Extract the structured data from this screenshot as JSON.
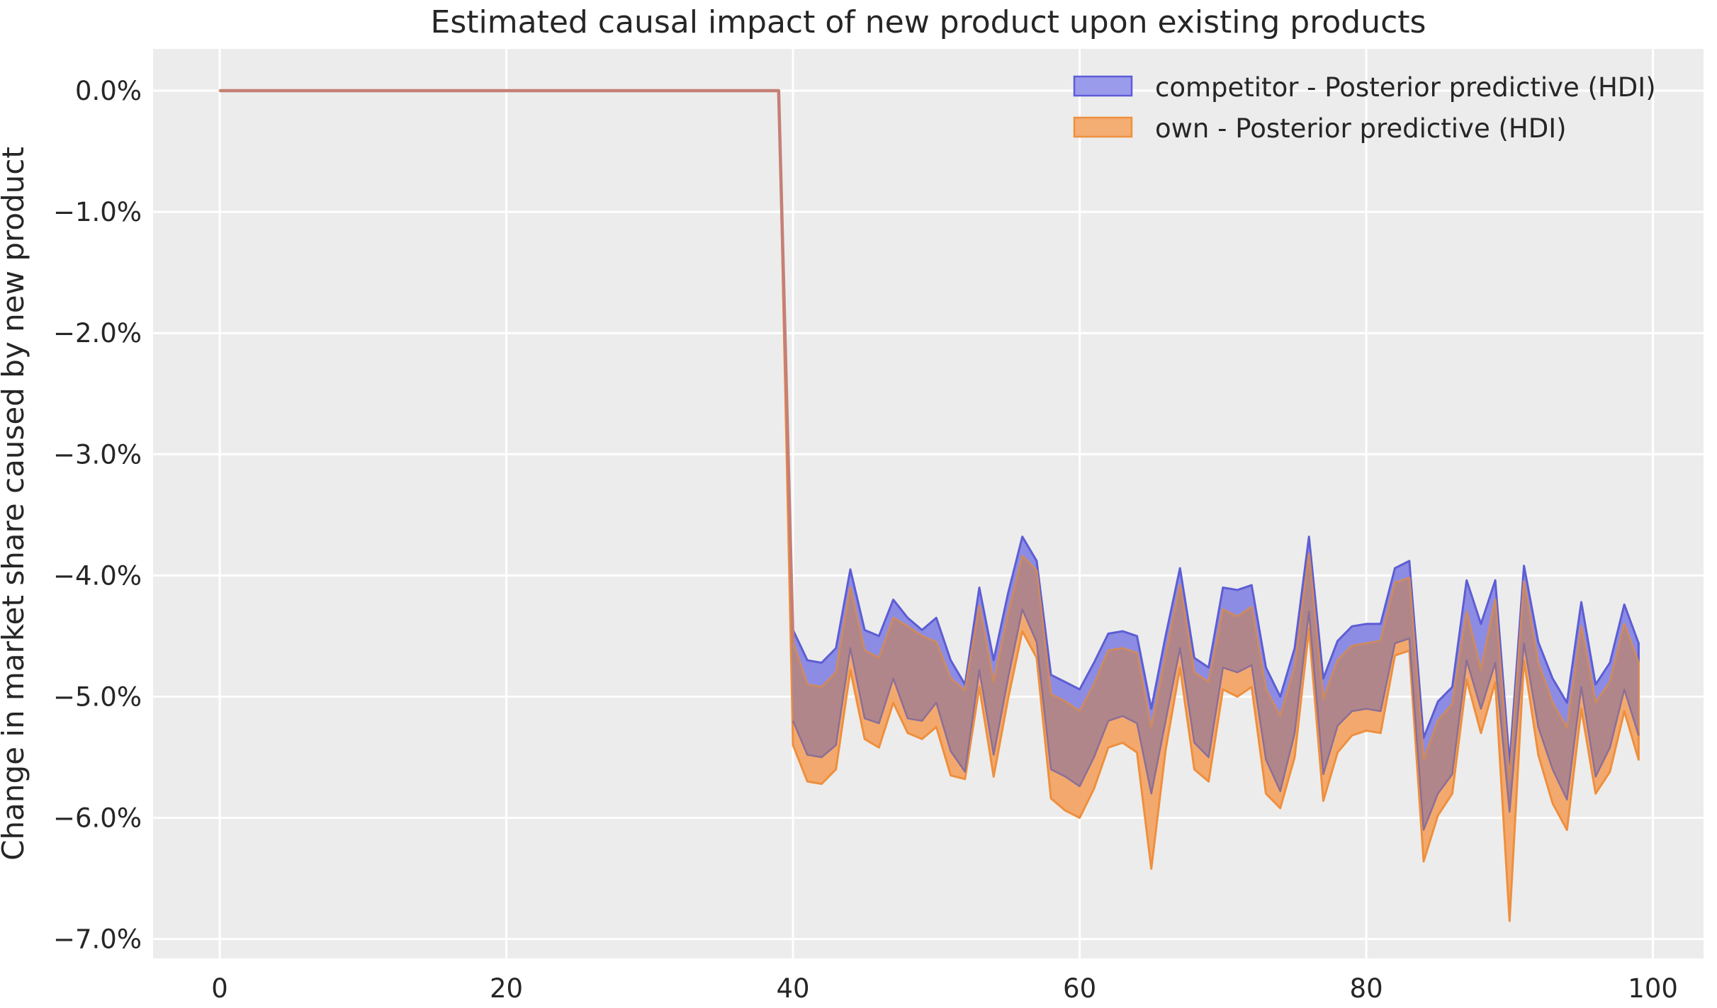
{
  "chart_data": {
    "type": "area",
    "title": "Estimated causal impact of new product upon existing products",
    "xlabel": "",
    "ylabel": "Change in market share caused by new product",
    "grid": true,
    "legend_position": "upper right",
    "xlim": [
      -4.65,
      103.53
    ],
    "ylim": [
      -7.16,
      0.345
    ],
    "x_ticks": {
      "values": [
        0,
        20,
        40,
        60,
        80,
        100
      ],
      "labels": [
        "0",
        "20",
        "40",
        "60",
        "80",
        "100"
      ]
    },
    "y_ticks": {
      "values": [
        0,
        -1,
        -2,
        -3,
        -4,
        -5,
        -6,
        -7
      ],
      "labels": [
        "0.0%",
        "−1.0%",
        "−2.0%",
        "−3.0%",
        "−4.0%",
        "−5.0%",
        "−6.0%",
        "−7.0%"
      ]
    },
    "pre_period": {
      "x_start": 0,
      "x_end": 39,
      "value": 0
    },
    "post_x_start": 40,
    "series": [
      {
        "name": "competitor - Posterior predictive (HDI)",
        "hi": [
          -4.45,
          -4.7,
          -4.72,
          -4.6,
          -3.95,
          -4.45,
          -4.5,
          -4.2,
          -4.35,
          -4.45,
          -4.35,
          -4.7,
          -4.9,
          -4.1,
          -4.7,
          -4.15,
          -3.68,
          -3.88,
          -4.82,
          -4.88,
          -4.94,
          -4.72,
          -4.48,
          -4.46,
          -4.5,
          -5.1,
          -4.5,
          -3.94,
          -4.68,
          -4.76,
          -4.1,
          -4.12,
          -4.08,
          -4.76,
          -5.0,
          -4.6,
          -3.68,
          -4.85,
          -4.54,
          -4.42,
          -4.4,
          -4.4,
          -3.94,
          -3.88,
          -5.34,
          -5.04,
          -4.92,
          -4.04,
          -4.4,
          -4.04,
          -5.55,
          -3.92,
          -4.55,
          -4.85,
          -5.05,
          -4.22,
          -4.9,
          -4.72,
          -4.24,
          -4.56
        ],
        "lo": [
          -5.2,
          -5.48,
          -5.5,
          -5.4,
          -4.6,
          -5.18,
          -5.22,
          -4.85,
          -5.18,
          -5.2,
          -5.05,
          -5.45,
          -5.62,
          -4.78,
          -5.48,
          -4.85,
          -4.28,
          -4.55,
          -5.6,
          -5.66,
          -5.74,
          -5.5,
          -5.2,
          -5.16,
          -5.22,
          -5.8,
          -5.2,
          -4.6,
          -5.38,
          -5.5,
          -4.76,
          -4.8,
          -4.74,
          -5.52,
          -5.78,
          -5.3,
          -4.3,
          -5.64,
          -5.24,
          -5.12,
          -5.1,
          -5.12,
          -4.56,
          -4.52,
          -6.1,
          -5.8,
          -5.64,
          -4.7,
          -5.1,
          -4.72,
          -5.95,
          -4.56,
          -5.25,
          -5.6,
          -5.85,
          -4.92,
          -5.66,
          -5.42,
          -4.94,
          -5.32
        ]
      },
      {
        "name": "own - Posterior predictive (HDI)",
        "hi": [
          -4.55,
          -4.9,
          -4.92,
          -4.8,
          -4.1,
          -4.62,
          -4.68,
          -4.35,
          -4.42,
          -4.5,
          -4.55,
          -4.85,
          -4.95,
          -4.25,
          -4.88,
          -4.32,
          -3.84,
          -3.96,
          -4.98,
          -5.04,
          -5.12,
          -4.9,
          -4.62,
          -4.6,
          -4.64,
          -5.26,
          -4.66,
          -4.08,
          -4.8,
          -4.88,
          -4.28,
          -4.34,
          -4.26,
          -4.94,
          -5.16,
          -4.76,
          -3.82,
          -5.02,
          -4.7,
          -4.58,
          -4.56,
          -4.54,
          -4.06,
          -4.02,
          -5.52,
          -5.2,
          -5.06,
          -4.3,
          -4.78,
          -4.2,
          -5.7,
          -4.05,
          -4.72,
          -5.05,
          -5.26,
          -4.42,
          -5.05,
          -4.88,
          -4.4,
          -4.72
        ],
        "lo": [
          -5.4,
          -5.7,
          -5.72,
          -5.6,
          -4.78,
          -5.35,
          -5.42,
          -5.05,
          -5.3,
          -5.35,
          -5.25,
          -5.65,
          -5.68,
          -4.92,
          -5.66,
          -5.02,
          -4.46,
          -4.68,
          -5.84,
          -5.94,
          -6.0,
          -5.76,
          -5.42,
          -5.38,
          -5.46,
          -6.42,
          -5.44,
          -4.76,
          -5.6,
          -5.7,
          -4.94,
          -5.0,
          -4.92,
          -5.8,
          -5.92,
          -5.5,
          -4.44,
          -5.86,
          -5.46,
          -5.32,
          -5.28,
          -5.3,
          -4.66,
          -4.62,
          -6.36,
          -5.98,
          -5.8,
          -4.86,
          -5.3,
          -4.88,
          -6.85,
          -4.7,
          -5.48,
          -5.88,
          -6.1,
          -5.1,
          -5.8,
          -5.62,
          -5.12,
          -5.52
        ]
      }
    ],
    "colors": {
      "axes_background": "#ececec",
      "grid_color": "#ffffff",
      "text_color": "#262626",
      "competitor_fill": "#8c8ce4",
      "competitor_edge": "#5d5dd4",
      "own_fill": "#f3a96d",
      "own_edge": "#ee8f3e",
      "overlap_fill": "#b1868a",
      "own_upper_inner_edge": "#cd8a60",
      "competitor_lower_inner_edge": "#8b6f96",
      "pre_period_line": "#c57f76",
      "legend_competitor_fill": "#9b9bec",
      "legend_competitor_edge": "#5c5cd8",
      "legend_own_fill": "#f4ad72",
      "legend_own_edge": "#ee9140"
    }
  }
}
